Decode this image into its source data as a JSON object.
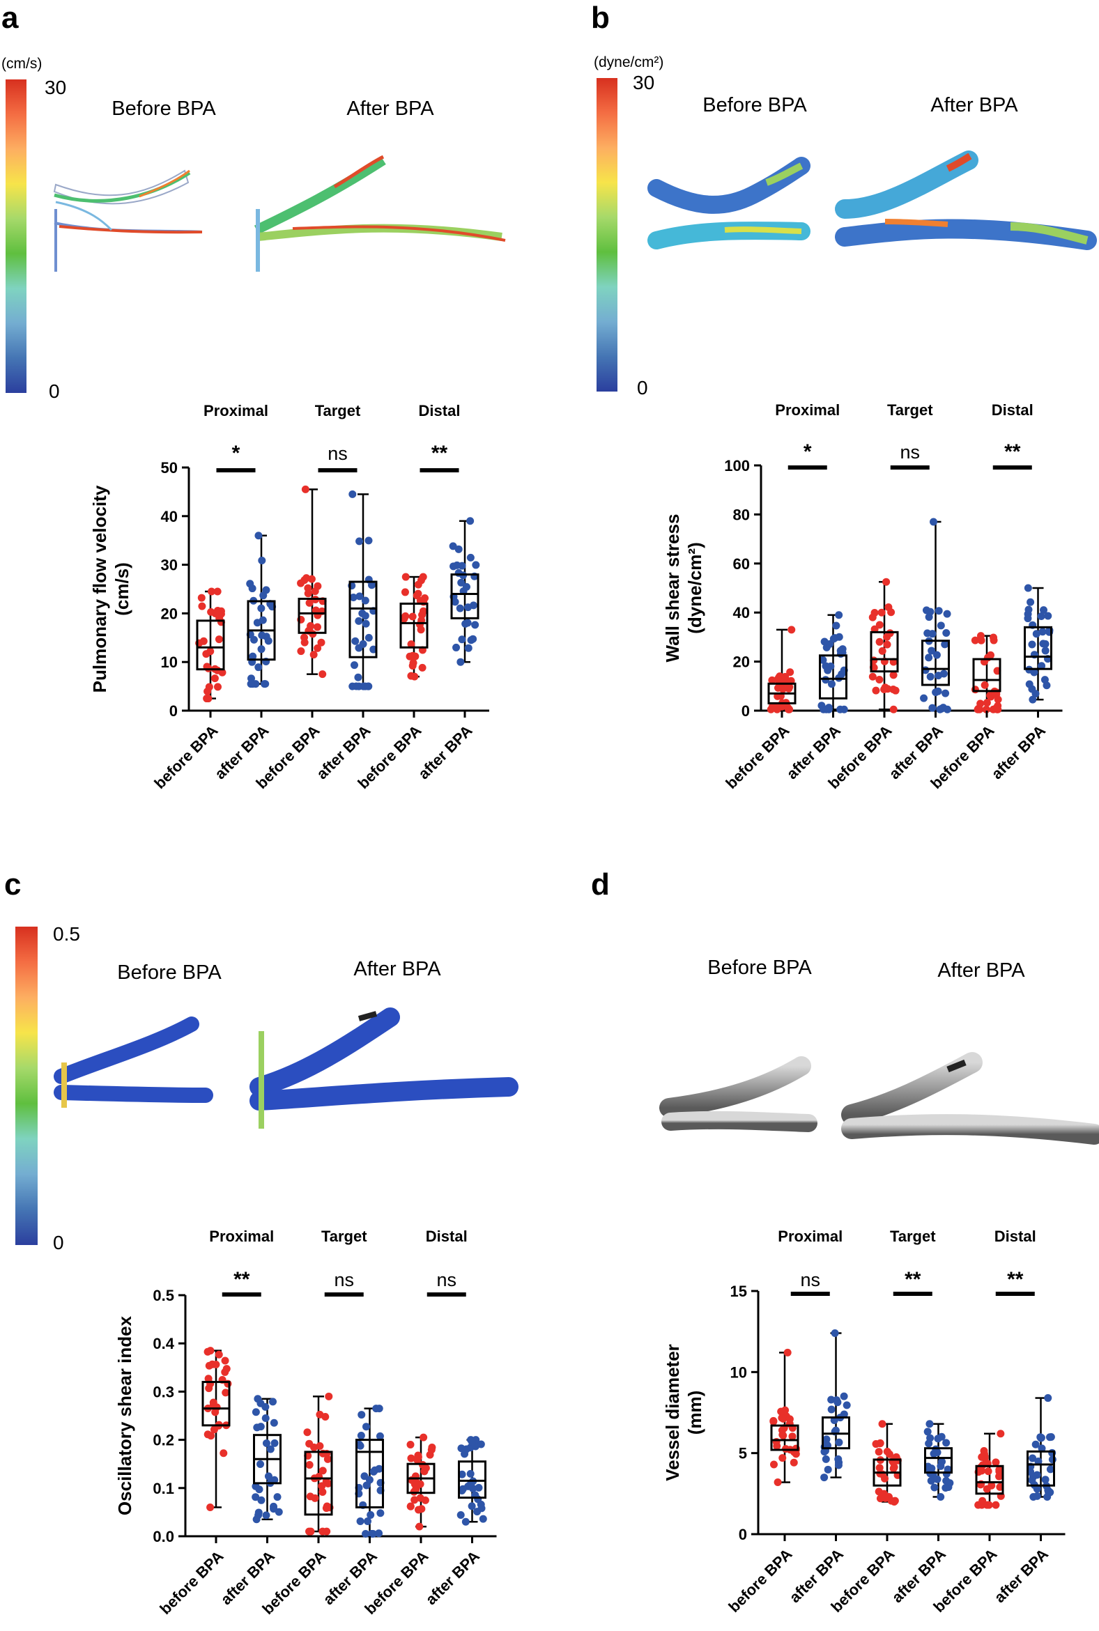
{
  "colors": {
    "before": "#e8302a",
    "after": "#2e55a8",
    "axis": "#000000"
  },
  "colorbar_stops": [
    "#d7301f",
    "#f46d43",
    "#fdae61",
    "#f7e44a",
    "#a6d96a",
    "#5fbf3f",
    "#7fd3c0",
    "#74add1",
    "#4575b4",
    "#2b3f9e"
  ],
  "panels": [
    {
      "label": "a",
      "colorbar": {
        "unit": "(cm/s)",
        "max": "30",
        "min": "0"
      },
      "image_titles": {
        "before": "Before BPA",
        "after": "After BPA"
      },
      "style": "streamline"
    },
    {
      "label": "b",
      "colorbar": {
        "unit": "(dyne/cm²)",
        "max": "30",
        "min": "0"
      },
      "image_titles": {
        "before": "Before BPA",
        "after": "After BPA"
      },
      "style": "surface"
    },
    {
      "label": "c",
      "colorbar": {
        "unit": "",
        "max": "0.5",
        "min": "0"
      },
      "image_titles": {
        "before": "Before BPA",
        "after": "After BPA"
      },
      "style": "surface-blue"
    },
    {
      "label": "d",
      "colorbar": null,
      "image_titles": {
        "before": "Before BPA",
        "after": "After BPA"
      },
      "style": "gray"
    }
  ],
  "chart_data": [
    {
      "type": "box",
      "panel": "a",
      "ylabel": [
        "Pulmonary flow velocity",
        "(cm/s)"
      ],
      "ylim": [
        0,
        50
      ],
      "yticks": [
        "0",
        "10",
        "20",
        "30",
        "40",
        "50"
      ],
      "groups": [
        "Proximal",
        "Target",
        "Distal"
      ],
      "significance": [
        "*",
        "ns",
        "**"
      ],
      "categories": [
        "before BPA",
        "after BPA",
        "before BPA",
        "after BPA",
        "before BPA",
        "after BPA"
      ],
      "boxes": [
        {
          "min": 2.5,
          "q1": 8.5,
          "median": 13,
          "q3": 18.5,
          "max": 24.5
        },
        {
          "min": 5.5,
          "q1": 10.5,
          "median": 16.5,
          "q3": 22.5,
          "max": 36
        },
        {
          "min": 7.5,
          "q1": 16,
          "median": 20,
          "q3": 23,
          "max": 45.5
        },
        {
          "min": 5,
          "q1": 11,
          "median": 21,
          "q3": 26.5,
          "max": 44.5
        },
        {
          "min": 7,
          "q1": 13,
          "median": 18,
          "q3": 22,
          "max": 27.5
        },
        {
          "min": 10,
          "q1": 19,
          "median": 24,
          "q3": 28,
          "max": 39
        }
      ]
    },
    {
      "type": "box",
      "panel": "b",
      "ylabel": [
        "Wall shear stress",
        "(dyne/cm²)"
      ],
      "ylim": [
        0,
        100
      ],
      "yticks": [
        "0",
        "20",
        "40",
        "60",
        "80",
        "100"
      ],
      "groups": [
        "Proximal",
        "Target",
        "Distal"
      ],
      "significance": [
        "*",
        "ns",
        "**"
      ],
      "categories": [
        "before BPA",
        "after BPA",
        "before BPA",
        "after BPA",
        "before BPA",
        "after BPA"
      ],
      "boxes": [
        {
          "min": 0.5,
          "q1": 3,
          "median": 7,
          "q3": 11,
          "max": 33
        },
        {
          "min": 0.5,
          "q1": 5,
          "median": 13,
          "q3": 22.5,
          "max": 39
        },
        {
          "min": 0.5,
          "q1": 16,
          "median": 21,
          "q3": 32,
          "max": 52.5
        },
        {
          "min": 0.5,
          "q1": 10.5,
          "median": 17,
          "q3": 28.5,
          "max": 77
        },
        {
          "min": 0.5,
          "q1": 8,
          "median": 12.5,
          "q3": 21,
          "max": 30.5
        },
        {
          "min": 4.5,
          "q1": 17,
          "median": 22,
          "q3": 34,
          "max": 50
        }
      ]
    },
    {
      "type": "box",
      "panel": "c",
      "ylabel": [
        "Oscillatory shear index"
      ],
      "ylim": [
        0,
        0.5
      ],
      "yticks": [
        "0.0",
        "0.1",
        "0.2",
        "0.3",
        "0.4",
        "0.5"
      ],
      "groups": [
        "Proximal",
        "Target",
        "Distal"
      ],
      "significance": [
        "**",
        "ns",
        "ns"
      ],
      "categories": [
        "before BPA",
        "after BPA",
        "before BPA",
        "after BPA",
        "before BPA",
        "after BPA"
      ],
      "boxes": [
        {
          "min": 0.06,
          "q1": 0.23,
          "median": 0.265,
          "q3": 0.32,
          "max": 0.385
        },
        {
          "min": 0.035,
          "q1": 0.11,
          "median": 0.16,
          "q3": 0.21,
          "max": 0.285
        },
        {
          "min": 0.01,
          "q1": 0.045,
          "median": 0.12,
          "q3": 0.175,
          "max": 0.29
        },
        {
          "min": 0.005,
          "q1": 0.06,
          "median": 0.175,
          "q3": 0.2,
          "max": 0.265
        },
        {
          "min": 0.02,
          "q1": 0.09,
          "median": 0.12,
          "q3": 0.15,
          "max": 0.205
        },
        {
          "min": 0.03,
          "q1": 0.08,
          "median": 0.115,
          "q3": 0.155,
          "max": 0.2
        }
      ]
    },
    {
      "type": "box",
      "panel": "d",
      "ylabel": [
        "Vessel diameter",
        "(mm)"
      ],
      "ylim": [
        0,
        15
      ],
      "yticks": [
        "0",
        "5",
        "10",
        "15"
      ],
      "groups": [
        "Proximal",
        "Target",
        "Distal"
      ],
      "significance": [
        "ns",
        "**",
        "**"
      ],
      "categories": [
        "before BPA",
        "after BPA",
        "before BPA",
        "after BPA",
        "before BPA",
        "after BPA"
      ],
      "boxes": [
        {
          "min": 3.2,
          "q1": 5.2,
          "median": 5.8,
          "q3": 6.7,
          "max": 11.2
        },
        {
          "min": 3.5,
          "q1": 5.3,
          "median": 6.2,
          "q3": 7.2,
          "max": 12.4
        },
        {
          "min": 2.0,
          "q1": 3.0,
          "median": 3.8,
          "q3": 4.6,
          "max": 6.8
        },
        {
          "min": 2.3,
          "q1": 3.8,
          "median": 4.7,
          "q3": 5.3,
          "max": 6.8
        },
        {
          "min": 1.8,
          "q1": 2.5,
          "median": 3.2,
          "q3": 4.2,
          "max": 6.2
        },
        {
          "min": 2.3,
          "q1": 3.0,
          "median": 4.3,
          "q3": 5.1,
          "max": 8.4
        }
      ]
    }
  ]
}
